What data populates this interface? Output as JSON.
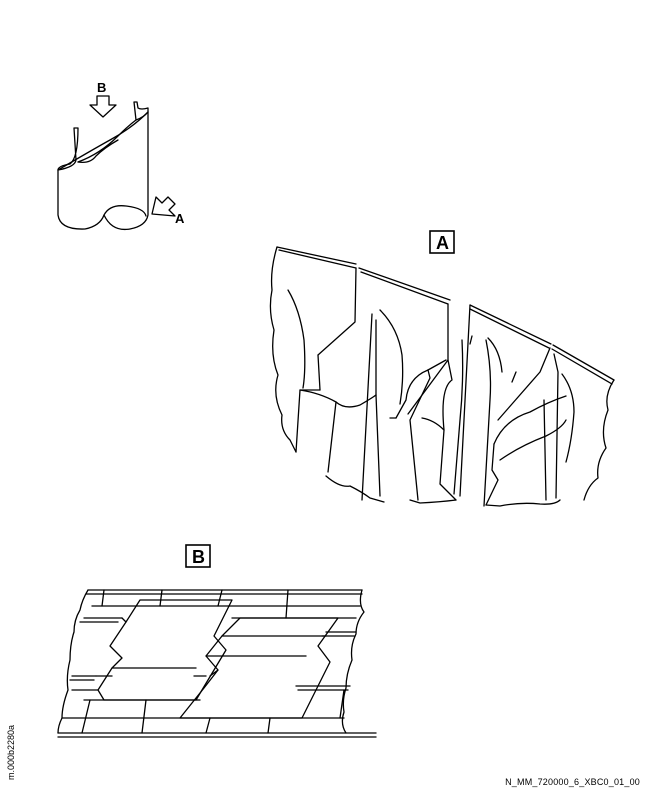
{
  "labels": {
    "arrow_b": "B",
    "arrow_a": "A",
    "view_a": "A",
    "view_b": "B"
  },
  "side_id": "m.000b2280a",
  "drawing_id": "N_MM_720000_6_XBC0_01_00",
  "colors": {
    "ink": "#000000",
    "paper": "#ffffff"
  }
}
